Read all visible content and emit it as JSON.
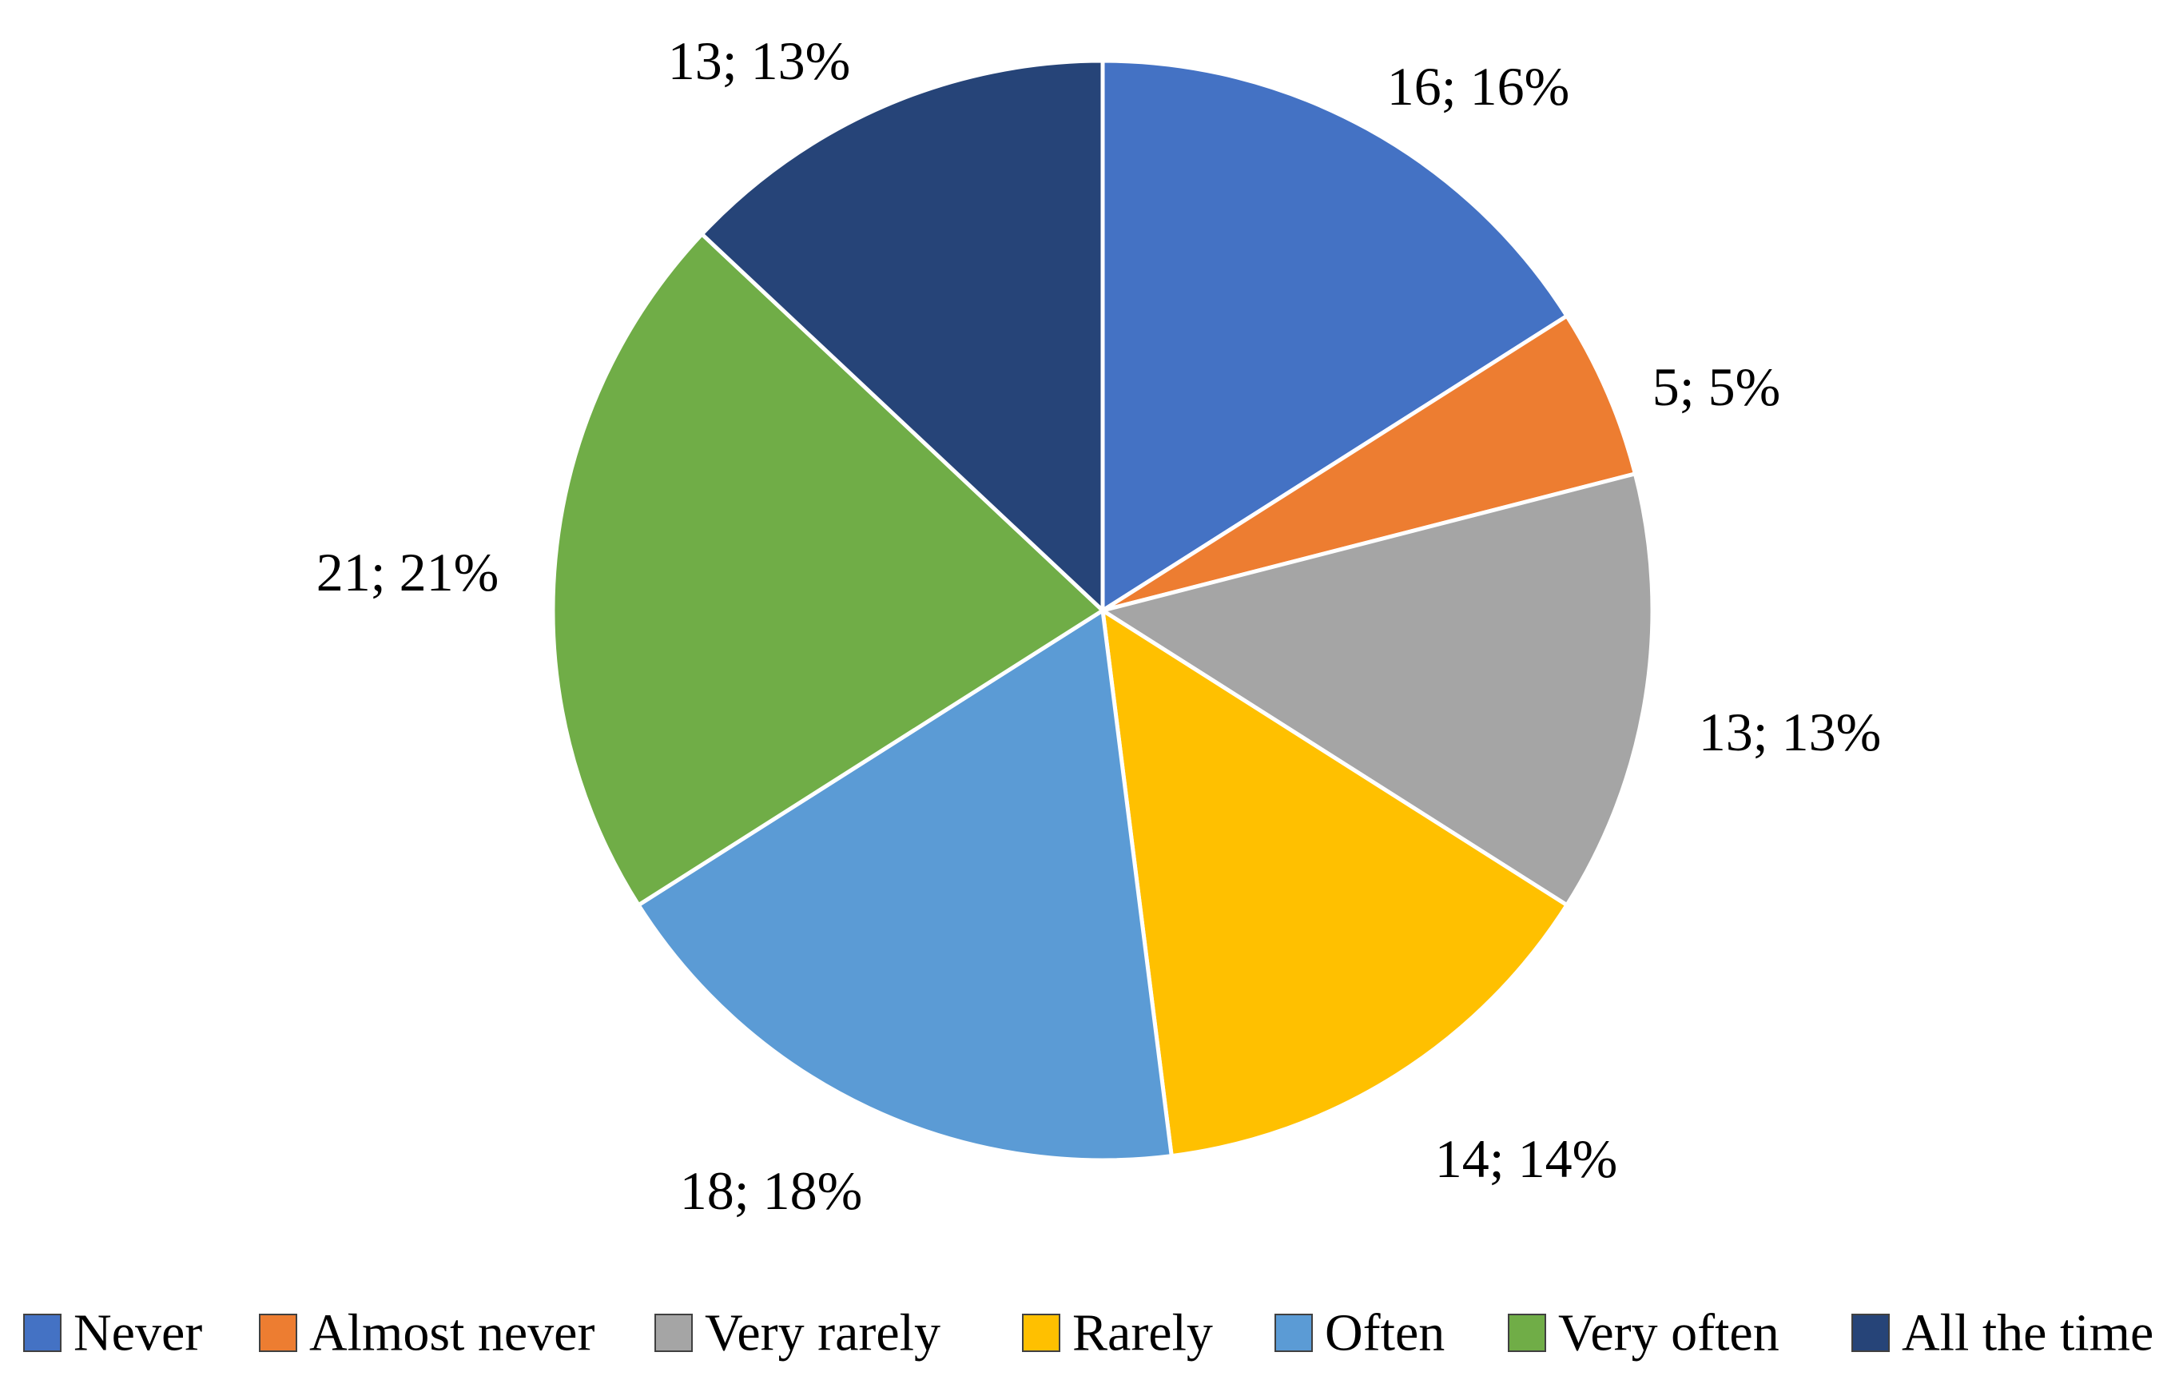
{
  "chart_data": {
    "type": "pie",
    "title": "",
    "categories": [
      "Never",
      "Almost never",
      "Very rarely",
      "Rarely",
      "Often",
      "Very often",
      "All the time"
    ],
    "values": [
      16,
      5,
      13,
      14,
      18,
      21,
      13
    ],
    "percentages": [
      16,
      5,
      13,
      14,
      18,
      21,
      13
    ],
    "data_labels": [
      "16; 16%",
      "5; 5%",
      "13; 13%",
      "14; 14%",
      "18; 18%",
      "21; 21%",
      "13; 13%"
    ],
    "colors": [
      "#4472C4",
      "#ED7D31",
      "#A5A5A5",
      "#FFC000",
      "#5B9BD5",
      "#70AD47",
      "#264478"
    ],
    "start_angle": "12 o'clock",
    "direction": "clockwise",
    "legend_position": "bottom"
  }
}
